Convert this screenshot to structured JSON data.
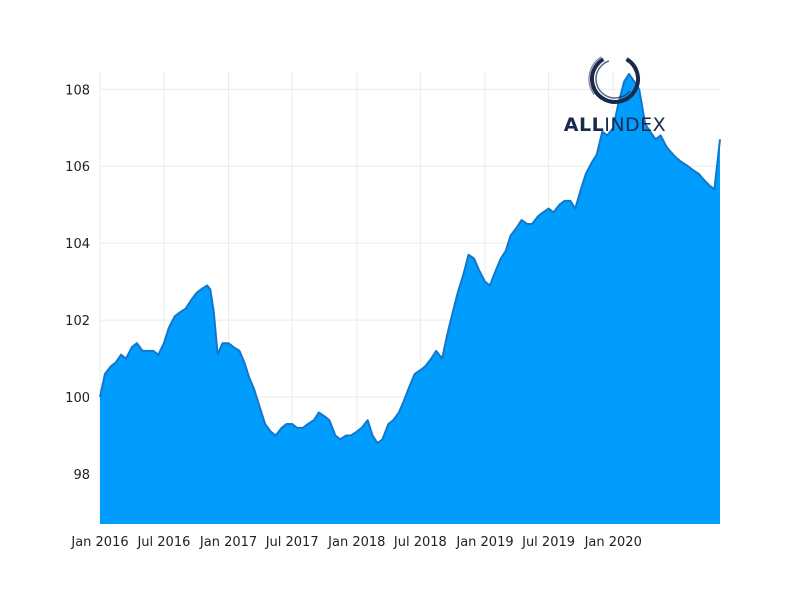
{
  "chart_data": {
    "type": "area",
    "title": "",
    "xlabel": "",
    "ylabel": "",
    "x_tick_labels": [
      "Jan 2016",
      "Jul 2016",
      "Jan 2017",
      "Jul 2017",
      "Jan 2018",
      "Jul 2018",
      "Jan 2019",
      "Jul 2019",
      "Jan 2020"
    ],
    "x_ticks": [
      "2016-01-01",
      "2016-07-01",
      "2017-01-01",
      "2017-07-01",
      "2018-01-01",
      "2018-07-01",
      "2019-01-01",
      "2019-07-01",
      "2020-01-01"
    ],
    "y_ticks": [
      98,
      100,
      102,
      104,
      106,
      108
    ],
    "xlim": [
      "2016-01-01",
      "2020-10-31"
    ],
    "ylim": [
      96.7,
      108.45
    ],
    "grid": true,
    "fill_color": "#009dff",
    "line_color": "#1177cc",
    "series": [
      {
        "x": [
          "2016-01-01",
          "2016-01-15",
          "2016-02-01",
          "2016-02-15",
          "2016-03-01",
          "2016-03-15",
          "2016-04-01",
          "2016-04-15",
          "2016-05-01",
          "2016-05-15",
          "2016-06-01",
          "2016-06-15",
          "2016-07-01",
          "2016-07-15",
          "2016-08-01",
          "2016-08-15",
          "2016-09-01",
          "2016-09-15",
          "2016-10-01",
          "2016-10-15",
          "2016-11-01",
          "2016-11-10",
          "2016-11-20",
          "2016-12-01",
          "2016-12-10",
          "2016-12-15",
          "2017-01-01",
          "2017-01-15",
          "2017-02-01",
          "2017-02-15",
          "2017-03-01",
          "2017-03-15",
          "2017-04-01",
          "2017-04-15",
          "2017-05-01",
          "2017-05-15",
          "2017-06-01",
          "2017-06-15",
          "2017-07-01",
          "2017-07-15",
          "2017-08-01",
          "2017-08-15",
          "2017-09-01",
          "2017-09-15",
          "2017-10-01",
          "2017-10-15",
          "2017-11-01",
          "2017-11-15",
          "2017-12-01",
          "2017-12-15",
          "2018-01-01",
          "2018-01-15",
          "2018-02-01",
          "2018-02-15",
          "2018-03-01",
          "2018-03-15",
          "2018-04-01",
          "2018-04-15",
          "2018-05-01",
          "2018-05-15",
          "2018-06-01",
          "2018-06-15",
          "2018-07-01",
          "2018-07-15",
          "2018-08-01",
          "2018-08-15",
          "2018-09-01",
          "2018-09-15",
          "2018-10-01",
          "2018-10-15",
          "2018-11-01",
          "2018-11-15",
          "2018-12-01",
          "2018-12-15",
          "2019-01-01",
          "2019-01-15",
          "2019-02-01",
          "2019-02-15",
          "2019-03-01",
          "2019-03-15",
          "2019-04-01",
          "2019-04-15",
          "2019-05-01",
          "2019-05-15",
          "2019-06-01",
          "2019-06-15",
          "2019-07-01",
          "2019-07-15",
          "2019-08-01",
          "2019-08-15",
          "2019-09-01",
          "2019-09-15",
          "2019-10-01",
          "2019-10-15",
          "2019-11-01",
          "2019-11-15",
          "2019-12-01",
          "2019-12-15",
          "2020-01-01",
          "2020-01-15",
          "2020-02-01",
          "2020-02-15",
          "2020-03-01",
          "2020-03-15",
          "2020-04-01",
          "2020-04-15",
          "2020-05-01",
          "2020-05-15",
          "2020-06-01",
          "2020-06-10",
          "2020-06-20",
          "2020-07-01",
          "2020-07-15",
          "2020-08-01",
          "2020-08-15",
          "2020-09-01",
          "2020-09-10",
          "2020-09-20",
          "2020-10-01",
          "2020-10-15",
          "2020-10-31"
        ],
        "y": [
          100.0,
          100.6,
          100.8,
          100.9,
          101.1,
          101.0,
          101.3,
          101.4,
          101.2,
          101.2,
          101.2,
          101.1,
          101.4,
          101.8,
          102.1,
          102.2,
          102.3,
          102.5,
          102.7,
          102.8,
          102.9,
          102.8,
          102.2,
          101.1,
          101.3,
          101.4,
          101.4,
          101.3,
          101.2,
          100.9,
          100.5,
          100.2,
          99.7,
          99.3,
          99.1,
          99.0,
          99.2,
          99.3,
          99.3,
          99.2,
          99.2,
          99.3,
          99.4,
          99.6,
          99.5,
          99.4,
          99.0,
          98.9,
          99.0,
          99.0,
          99.1,
          99.2,
          99.4,
          99.0,
          98.8,
          98.9,
          99.3,
          99.4,
          99.6,
          99.9,
          100.3,
          100.6,
          100.7,
          100.8,
          101.0,
          101.2,
          101.0,
          101.6,
          102.2,
          102.7,
          103.2,
          103.7,
          103.6,
          103.3,
          103.0,
          102.9,
          103.3,
          103.6,
          103.8,
          104.2,
          104.4,
          104.6,
          104.5,
          104.5,
          104.7,
          104.8,
          104.9,
          104.8,
          105.0,
          105.1,
          105.1,
          104.9,
          105.4,
          105.8,
          106.1,
          106.3,
          106.9,
          106.8,
          107.0,
          107.6,
          108.2,
          108.4,
          108.2,
          108.0,
          107.1,
          106.9,
          106.7,
          106.8,
          106.5,
          106.4,
          106.3,
          106.2,
          106.1,
          106.0,
          105.9,
          105.8,
          105.7,
          105.6,
          105.5,
          105.4,
          106.7
        ]
      }
    ]
  },
  "logo": {
    "text_bold": "ALL",
    "text_light": "INDEX",
    "color": "#1a2a4a"
  }
}
